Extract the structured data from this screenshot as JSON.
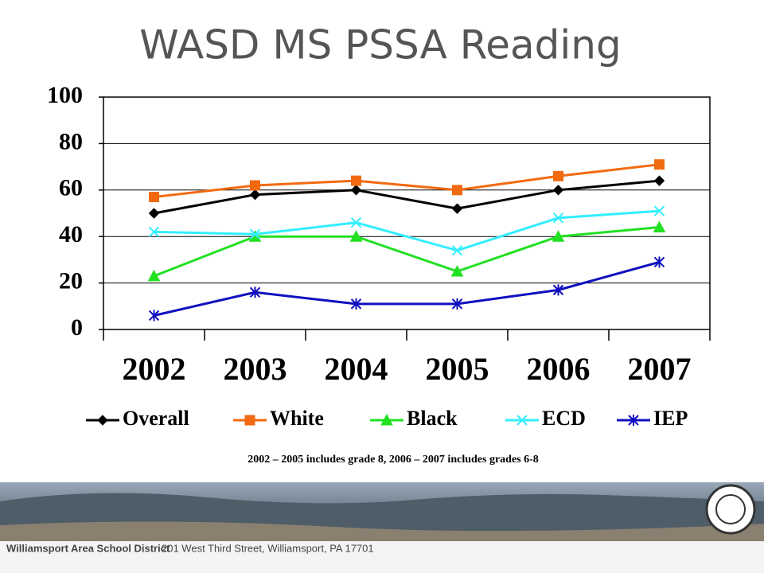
{
  "chart_data": {
    "type": "line",
    "title": "WASD MS PSSA Reading",
    "categories": [
      "2002",
      "2003",
      "2004",
      "2005",
      "2006",
      "2007"
    ],
    "series": [
      {
        "name": "Overall",
        "color": "#000000",
        "marker": "diamond",
        "values": [
          50,
          58,
          60,
          52,
          60,
          64
        ]
      },
      {
        "name": "White",
        "color": "#f26a10",
        "marker": "square",
        "values": [
          57,
          62,
          64,
          60,
          66,
          71
        ]
      },
      {
        "name": "Black",
        "color": "#22e022",
        "marker": "triangle",
        "values": [
          23,
          40,
          40,
          25,
          40,
          44
        ]
      },
      {
        "name": "ECD",
        "color": "#33eeff",
        "marker": "x",
        "values": [
          42,
          41,
          46,
          34,
          48,
          51
        ]
      },
      {
        "name": "IEP",
        "color": "#1010c0",
        "marker": "asterisk",
        "values": [
          6,
          16,
          11,
          11,
          17,
          29
        ]
      }
    ],
    "ylim": [
      0,
      100
    ],
    "yticks": [
      0,
      20,
      40,
      60,
      80,
      100
    ],
    "grid": true,
    "legend": "bottom",
    "note": "2002 – 2005 includes grade 8,  2006 – 2007 includes grades 6-8"
  },
  "footer": {
    "name": "Williamsport Area School District",
    "address": "201 West Third Street, Williamsport, PA 17701"
  }
}
